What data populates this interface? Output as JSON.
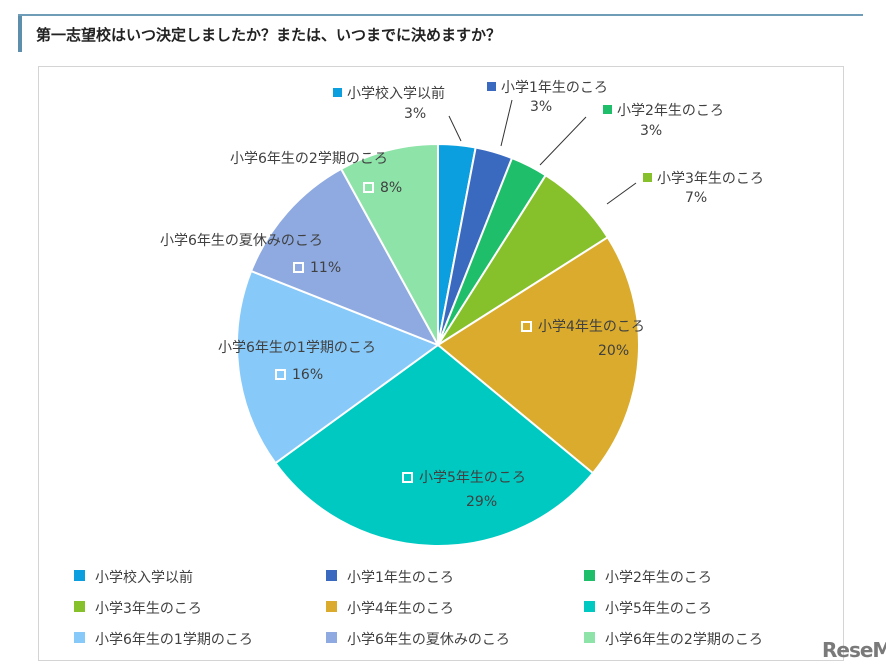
{
  "title": "第一志望校はいつ決定しましたか？または、いつまでに決めますか？",
  "logo": "ReseMom",
  "chart_data": {
    "type": "pie",
    "start": "top, clockwise",
    "slices": [
      {
        "label": "小学校入学以前",
        "value": 3,
        "display": "3%",
        "color": "#0c9fe0"
      },
      {
        "label": "小学1年生のころ",
        "value": 3,
        "display": "3%",
        "color": "#3a6ac0"
      },
      {
        "label": "小学2年生のころ",
        "value": 3,
        "display": "3%",
        "color": "#1fbe6a"
      },
      {
        "label": "小学3年生のころ",
        "value": 7,
        "display": "7%",
        "color": "#86c02b"
      },
      {
        "label": "小学4年生のころ",
        "value": 20,
        "display": "20%",
        "color": "#daab2c"
      },
      {
        "label": "小学5年生のころ",
        "value": 29,
        "display": "29%",
        "color": "#00c9c1"
      },
      {
        "label": "小学6年生の1学期のころ",
        "value": 16,
        "display": "16%",
        "color": "#87c9f9"
      },
      {
        "label": "小学6年生の夏休みのころ",
        "value": 11,
        "display": "11%",
        "color": "#8eaae0"
      },
      {
        "label": "小学6年生の2学期のころ",
        "value": 8,
        "display": "8%",
        "color": "#8de3a8"
      }
    ],
    "legend": "bottom"
  }
}
